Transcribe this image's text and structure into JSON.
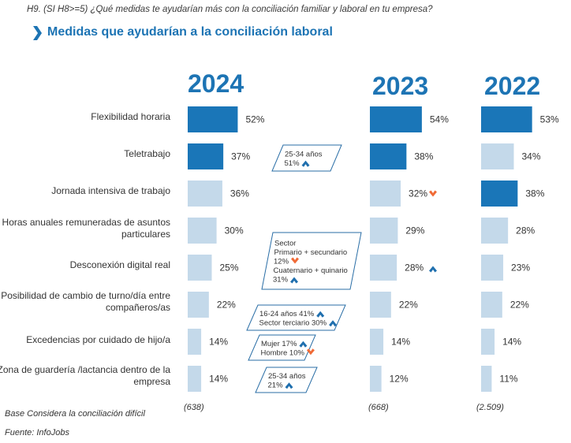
{
  "question": "H9. (SI H8>=5) ¿Qué medidas te ayudarían más con la conciliación familiar y laboral en tu empresa?",
  "subtitle": "Medidas que ayudarían a la conciliación laboral",
  "colors": {
    "highlight": "#1a76b8",
    "normal": "#c4d9ea",
    "title": "#1d74b4",
    "up_arrow": "#1f6fae",
    "down_arrow": "#f06a36",
    "note_border": "#2a6ea6"
  },
  "chart_data": {
    "type": "bar",
    "orientation": "horizontal",
    "categories": [
      "Flexibilidad horaria",
      "Teletrabajo",
      "Jornada intensiva de trabajo",
      "Horas anuales remuneradas de asuntos particulares",
      "Desconexión digital real",
      "Posibilidad de cambio de turno/día entre compañeros/as",
      "Excedencias por cuidado de hijo/a",
      "Zona de guardería /lactancia dentro de la empresa"
    ],
    "series": [
      {
        "name": "2024",
        "values": [
          52,
          37,
          36,
          30,
          25,
          22,
          14,
          14
        ],
        "labels": [
          "52%",
          "37%",
          "36%",
          "30%",
          "25%",
          "22%",
          "14%",
          "14%"
        ],
        "highlight": [
          true,
          true,
          false,
          false,
          false,
          false,
          false,
          false
        ],
        "base_n": "(638)"
      },
      {
        "name": "2023",
        "values": [
          54,
          38,
          32,
          29,
          28,
          22,
          14,
          12
        ],
        "labels": [
          "54%",
          "38%",
          "32%",
          "29%",
          "28%",
          "22%",
          "14%",
          "12%"
        ],
        "highlight": [
          true,
          true,
          false,
          false,
          false,
          false,
          false,
          false
        ],
        "base_n": "(668)"
      },
      {
        "name": "2022",
        "values": [
          53,
          34,
          38,
          28,
          23,
          22,
          14,
          11
        ],
        "labels": [
          "53%",
          "34%",
          "38%",
          "28%",
          "23%",
          "22%",
          "14%",
          "11%"
        ],
        "highlight": [
          true,
          false,
          true,
          false,
          false,
          false,
          false,
          false
        ],
        "base_n": "(2.509)"
      }
    ],
    "trend_markers": [
      {
        "series": "2023",
        "category_index": 2,
        "direction": "down"
      },
      {
        "series": "2023",
        "category_index": 4,
        "direction": "up"
      }
    ],
    "annotations": [
      {
        "category_index": 1,
        "lines": [
          {
            "text": "25-34 años",
            "arrow": ""
          },
          {
            "text": "51%",
            "arrow": "up"
          }
        ]
      },
      {
        "category_index": 4,
        "lines": [
          {
            "text": "Sector",
            "arrow": ""
          },
          {
            "text": "Primario + secundario",
            "arrow": ""
          },
          {
            "text": "12%",
            "arrow": "down"
          },
          {
            "text": "Cuaternario + quinario",
            "arrow": ""
          },
          {
            "text": "31%",
            "arrow": "up"
          }
        ]
      },
      {
        "category_index": 5,
        "lines": [
          {
            "text": "16-24 años 41%",
            "arrow": "up"
          },
          {
            "text": "Sector terciario 30%",
            "arrow": "up"
          }
        ]
      },
      {
        "category_index": 6,
        "lines": [
          {
            "text": "Mujer 17%",
            "arrow": "up"
          },
          {
            "text": "Hombre 10%",
            "arrow": "down"
          }
        ]
      },
      {
        "category_index": 7,
        "lines": [
          {
            "text": "25-34 años",
            "arrow": ""
          },
          {
            "text": "21%",
            "arrow": "up"
          }
        ]
      }
    ]
  },
  "footer": {
    "base": "Base Considera la conciliación difícil",
    "source": "Fuente: InfoJobs"
  }
}
